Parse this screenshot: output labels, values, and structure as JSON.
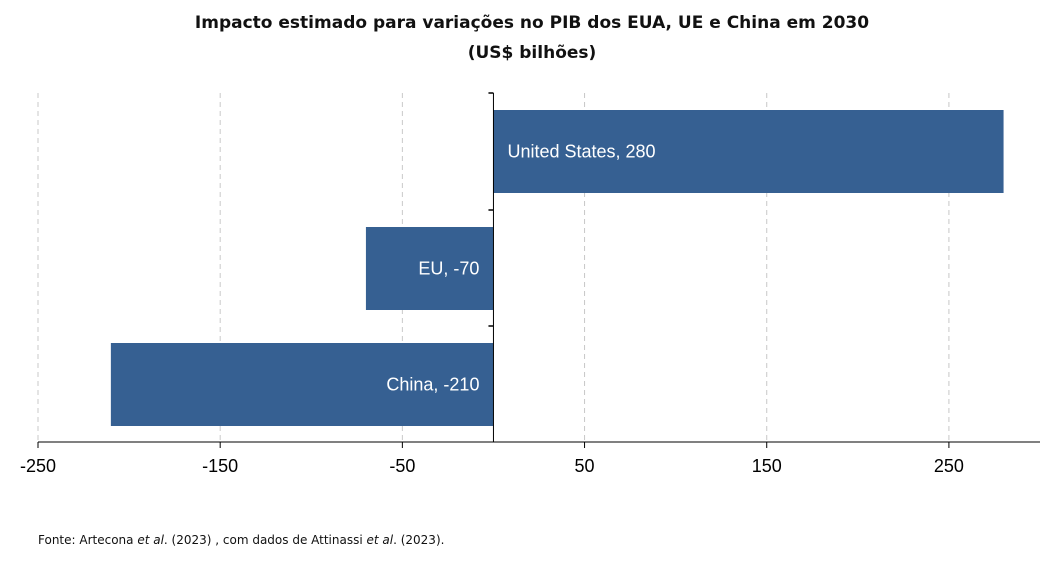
{
  "title_line1": "Impacto estimado para variações no PIB dos EUA, UE e China em 2030",
  "title_line2": "(US$ bilhões)",
  "footnote": {
    "part1": "Fonte: Artecona ",
    "etal1": "et al",
    "part2": ". (2023) , com dados de Attinassi ",
    "etal2": "et al",
    "part3": ". (2023)."
  },
  "colors": {
    "bar": "#366092",
    "bar_label": "#ffffff",
    "grid": "#c8c8c8",
    "axis": "#000000"
  },
  "chart_data": {
    "type": "bar",
    "orientation": "horizontal",
    "title": "Impacto estimado para variações no PIB dos EUA, UE e China em 2030 (US$ bilhões)",
    "categories": [
      "United States",
      "EU",
      "China"
    ],
    "values": [
      280,
      -70,
      -210
    ],
    "data_labels": [
      "United States, 280",
      "EU, -70",
      "China, -210"
    ],
    "xlim": [
      -250,
      300
    ],
    "xticks": [
      -250,
      -150,
      -50,
      50,
      150,
      250
    ],
    "xtick_labels": [
      "-250",
      "-150",
      "-50",
      "50",
      "150",
      "250"
    ],
    "grid": "vertical dashed",
    "legend": "none"
  }
}
